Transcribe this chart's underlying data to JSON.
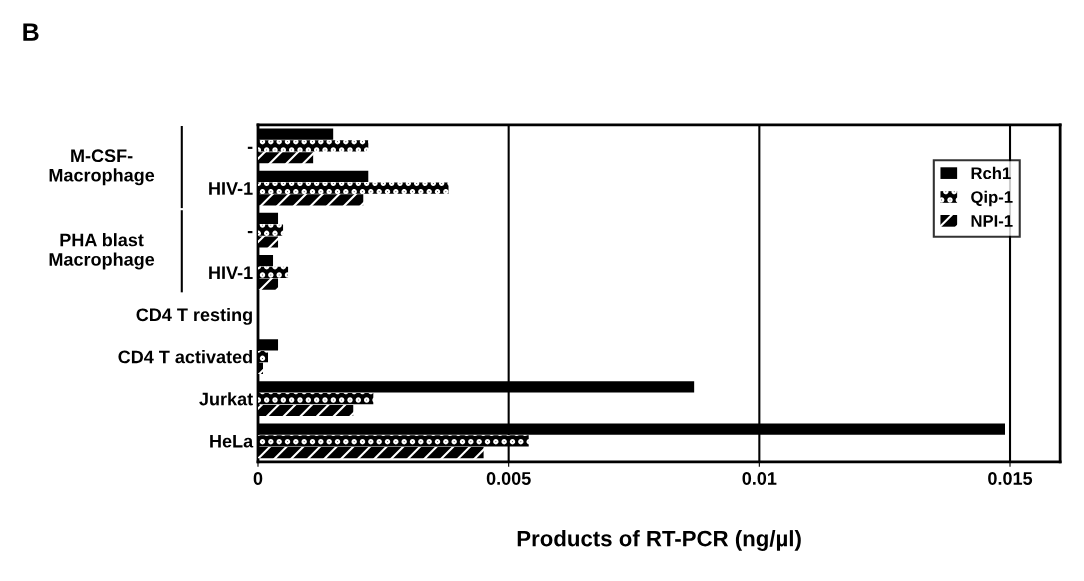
{
  "chart_data": {
    "type": "bar",
    "orientation": "horizontal",
    "title": "B",
    "xlabel": "Products of RT-PCR (ng/µl)",
    "categories": [
      "-",
      "HIV-1",
      "-",
      "HIV-1",
      "CD4 T resting",
      "CD4 T activated",
      "Jurkat",
      "HeLa"
    ],
    "annotations": [
      "M-CSF-\nMacrophage",
      "PHA blast\nMacrophage"
    ],
    "series": [
      {
        "name": "Rch1",
        "color": "#000000",
        "values": [
          0.0015,
          0.0022,
          0.0004,
          0.0003,
          0,
          0.0004,
          0.0087,
          0.0149
        ]
      },
      {
        "name": "Qip-1",
        "color": "#000000",
        "values": [
          0.0022,
          0.0038,
          0.0005,
          0.0006,
          0,
          0.0002,
          0.0023,
          0.0054
        ]
      },
      {
        "name": "NPI-1",
        "color": "#000000",
        "values": [
          0.0011,
          0.0021,
          0.0004,
          0.0004,
          0,
          0.0001,
          0.0019,
          0.0045
        ]
      }
    ],
    "xlim": [
      0,
      0.016
    ],
    "xticks": [
      0,
      0.005,
      0.01,
      0.015
    ],
    "grid": "x",
    "legend": "top right"
  }
}
